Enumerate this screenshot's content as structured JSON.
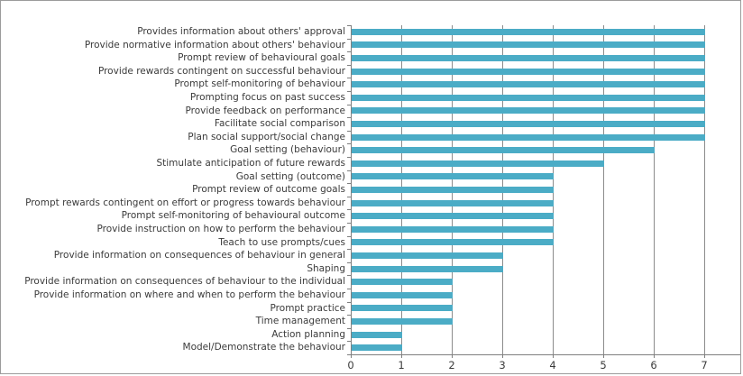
{
  "chart": {
    "title": "",
    "frame_border_color": "#9b9b9b",
    "background_color": "#ffffff"
  },
  "chart_data": {
    "type": "bar",
    "orientation": "horizontal",
    "title": "",
    "xlabel": "",
    "ylabel": "",
    "categories": [
      "Provides information about others' approval",
      "Provide normative information about others' behaviour",
      "Prompt review of behavioural goals",
      "Provide rewards contingent on successful behaviour",
      "Prompt self-monitoring of behaviour",
      "Prompting focus on past success",
      "Provide feedback on performance",
      "Facilitate social comparison",
      "Plan social support/social change",
      "Goal setting (behaviour)",
      "Stimulate anticipation of future rewards",
      "Goal setting (outcome)",
      "Prompt review of outcome goals",
      "Prompt rewards contingent on effort or progress towards behaviour",
      "Prompt self-monitoring of behavioural outcome",
      "Provide instruction on how to perform the behaviour",
      "Teach to use prompts/cues",
      "Provide information on consequences of behaviour in general",
      "Shaping",
      "Provide information on consequences of behaviour to the individual",
      "Provide information on where and when to perform the behaviour",
      "Prompt practice",
      "Time management",
      "Action planning",
      "Model/Demonstrate the behaviour"
    ],
    "values": [
      7,
      7,
      7,
      7,
      7,
      7,
      7,
      7,
      7,
      6,
      5,
      4,
      4,
      4,
      4,
      4,
      4,
      3,
      3,
      2,
      2,
      2,
      2,
      1,
      1
    ],
    "x_ticks": [
      0,
      1,
      2,
      3,
      4,
      5,
      6,
      7
    ],
    "xlim": [
      0,
      7
    ],
    "grid": true,
    "legend": false,
    "bar_color": "#4BACC6",
    "gridline_color": "#8c8c8c",
    "axis_color": "#7f7f7f",
    "label_color": "#3b3b3b"
  }
}
